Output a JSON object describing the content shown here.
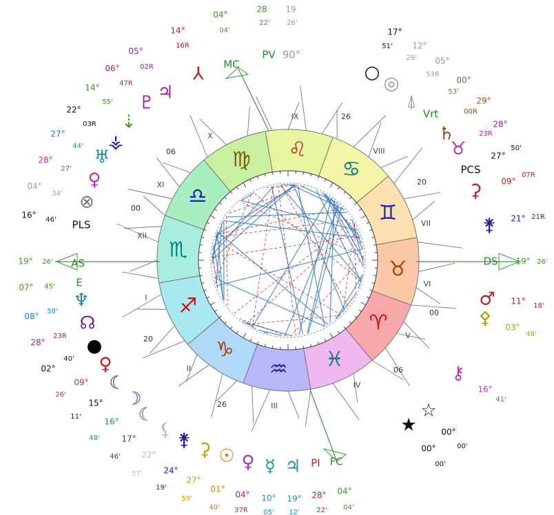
{
  "signs": [
    "♈",
    "♉",
    "♊",
    "♋",
    "♌",
    "♍",
    "♎",
    "♏",
    "♐",
    "♑",
    "♒",
    "♓"
  ],
  "houses": [
    "IX",
    "X",
    "XI",
    "XII",
    "I",
    "II",
    "III",
    "IV",
    "V",
    "VI",
    "VII",
    "VIII"
  ],
  "cusps": [
    "26",
    "20",
    "00",
    "06",
    "26",
    "20",
    "00",
    "06"
  ],
  "labels": [
    "MC",
    "PV",
    "90°",
    "PCS",
    "DS",
    "FC",
    "PI",
    "E",
    "AS",
    "PLS",
    "Vrt"
  ],
  "glyphs": [
    "○",
    "◎",
    "⍋",
    "♄",
    "♉",
    "⚳",
    "⚵",
    "♂",
    "⚴",
    "⚷",
    "☆",
    "★",
    "♃",
    "☿",
    "♀",
    "☉",
    "⚳",
    "⚵",
    "⚸",
    "☾",
    "☽",
    "☾",
    "♀",
    "●",
    "☊",
    "♆",
    "⊗",
    "♀",
    "♅",
    "⚶",
    "⇣",
    "♇",
    "♃",
    "⅄"
  ],
  "degrees": [
    {
      "deg": "14°",
      "min": "16R"
    },
    {
      "deg": "05°",
      "min": "02R"
    },
    {
      "deg": "06°",
      "min": "47R"
    },
    {
      "deg": "14°",
      "min": "55'"
    },
    {
      "deg": "22°",
      "min": "03R"
    },
    {
      "deg": "27°",
      "min": "44'"
    },
    {
      "deg": "28°",
      "min": "27'"
    },
    {
      "deg": "04°",
      "min": "34'"
    },
    {
      "deg": "16°",
      "min": "46'"
    },
    {
      "deg": "19°",
      "min": "26'"
    },
    {
      "deg": "07°",
      "min": "45'"
    },
    {
      "deg": "08°",
      "min": "58'"
    },
    {
      "deg": "28°",
      "min": "23R"
    },
    {
      "deg": "02°",
      "min": "40'"
    },
    {
      "deg": "09°",
      "min": "26'"
    },
    {
      "deg": "15°",
      "min": "11'"
    },
    {
      "deg": "16°",
      "min": "48'"
    },
    {
      "deg": "17°",
      "min": "46'"
    },
    {
      "deg": "22°",
      "min": "57'"
    },
    {
      "deg": "24°",
      "min": "19'"
    },
    {
      "deg": "27°",
      "min": "59'"
    },
    {
      "deg": "01°",
      "min": "40'"
    },
    {
      "deg": "04°",
      "min": "37R"
    },
    {
      "deg": "10°",
      "min": "05'"
    },
    {
      "deg": "19°",
      "min": "12'"
    },
    {
      "deg": "28°",
      "min": "22'"
    },
    {
      "deg": "04°",
      "min": "04'"
    },
    {
      "deg": "00°",
      "min": "00'"
    },
    {
      "deg": "00°",
      "min": "00'"
    },
    {
      "deg": "16°",
      "min": "41'"
    },
    {
      "deg": "03°",
      "min": "48'"
    },
    {
      "deg": "11°",
      "min": "18'"
    },
    {
      "deg": "19°",
      "min": "26'"
    },
    {
      "deg": "21°",
      "min": "21R"
    },
    {
      "deg": "09°",
      "min": "07R"
    },
    {
      "deg": "27°",
      "min": "50'"
    },
    {
      "deg": "28°",
      "min": "23R"
    },
    {
      "deg": "29°",
      "min": "00R"
    },
    {
      "deg": "00°",
      "min": "53'"
    },
    {
      "deg": "05°",
      "min": "53R"
    },
    {
      "deg": "12°",
      "min": "29'"
    },
    {
      "deg": "17°",
      "min": "51'"
    },
    {
      "deg": "04°",
      "min": "04'"
    },
    {
      "deg": "28",
      "min": "22'"
    },
    {
      "deg": "19",
      "min": "26'"
    }
  ]
}
